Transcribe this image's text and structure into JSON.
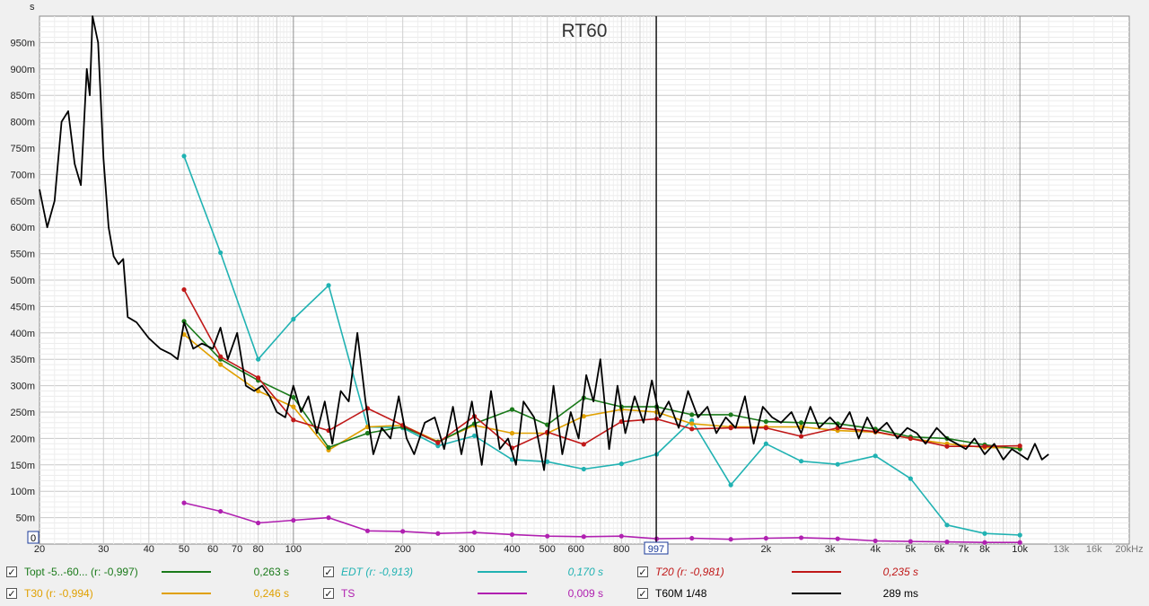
{
  "chart_data": {
    "type": "line",
    "title": "RT60",
    "ylabel": "s",
    "xunit": "Hz",
    "xscale": "log",
    "xlim": [
      20,
      20000
    ],
    "ylim": [
      0,
      1.0
    ],
    "grid": true,
    "y_ticks": [
      {
        "v": 0.05,
        "label": "50m"
      },
      {
        "v": 0.1,
        "label": "100m"
      },
      {
        "v": 0.15,
        "label": "150m"
      },
      {
        "v": 0.2,
        "label": "200m"
      },
      {
        "v": 0.25,
        "label": "250m"
      },
      {
        "v": 0.3,
        "label": "300m"
      },
      {
        "v": 0.35,
        "label": "350m"
      },
      {
        "v": 0.4,
        "label": "400m"
      },
      {
        "v": 0.45,
        "label": "450m"
      },
      {
        "v": 0.5,
        "label": "500m"
      },
      {
        "v": 0.55,
        "label": "550m"
      },
      {
        "v": 0.6,
        "label": "600m"
      },
      {
        "v": 0.65,
        "label": "650m"
      },
      {
        "v": 0.7,
        "label": "700m"
      },
      {
        "v": 0.75,
        "label": "750m"
      },
      {
        "v": 0.8,
        "label": "800m"
      },
      {
        "v": 0.85,
        "label": "850m"
      },
      {
        "v": 0.9,
        "label": "900m"
      },
      {
        "v": 0.95,
        "label": "950m"
      }
    ],
    "y_zero_label": "0",
    "x_ticks": [
      {
        "v": 20,
        "label": "20"
      },
      {
        "v": 30,
        "label": "30"
      },
      {
        "v": 40,
        "label": "40"
      },
      {
        "v": 50,
        "label": "50"
      },
      {
        "v": 60,
        "label": "60"
      },
      {
        "v": 70,
        "label": "70"
      },
      {
        "v": 80,
        "label": "80"
      },
      {
        "v": 100,
        "label": "100"
      },
      {
        "v": 200,
        "label": "200"
      },
      {
        "v": 300,
        "label": "300"
      },
      {
        "v": 400,
        "label": "400"
      },
      {
        "v": 500,
        "label": "500"
      },
      {
        "v": 600,
        "label": "600"
      },
      {
        "v": 800,
        "label": "800"
      },
      {
        "v": 2000,
        "label": "2k"
      },
      {
        "v": 3000,
        "label": "3k"
      },
      {
        "v": 4000,
        "label": "4k"
      },
      {
        "v": 5000,
        "label": "5k"
      },
      {
        "v": 6000,
        "label": "6k"
      },
      {
        "v": 7000,
        "label": "7k"
      },
      {
        "v": 8000,
        "label": "8k"
      },
      {
        "v": 10000,
        "label": "10k"
      },
      {
        "v": 13000,
        "label": "13k",
        "dim": true
      },
      {
        "v": 16000,
        "label": "16k",
        "dim": true
      },
      {
        "v": 20000,
        "label": "20kHz",
        "dim": true
      }
    ],
    "cursor": {
      "x": 997,
      "label": "997"
    },
    "series": [
      {
        "name": "EDT",
        "color": "#20b2b2",
        "markers": true,
        "x": [
          50,
          63,
          80,
          100,
          125,
          160,
          200,
          250,
          315,
          400,
          500,
          630,
          800,
          1000,
          1250,
          1600,
          2000,
          2500,
          3150,
          4000,
          5000,
          6300,
          8000,
          10000
        ],
        "y": [
          0.735,
          0.552,
          0.35,
          0.426,
          0.49,
          0.222,
          0.22,
          0.186,
          0.205,
          0.16,
          0.156,
          0.142,
          0.152,
          0.17,
          0.234,
          0.112,
          0.19,
          0.157,
          0.151,
          0.167,
          0.124,
          0.036,
          0.02,
          0.017
        ]
      },
      {
        "name": "T30",
        "color": "#e0a000",
        "markers": true,
        "x": [
          50,
          63,
          80,
          100,
          125,
          160,
          200,
          250,
          315,
          400,
          500,
          630,
          800,
          1000,
          1250,
          1600,
          2000,
          2500,
          3150,
          4000,
          5000,
          6300,
          8000,
          10000
        ],
        "y": [
          0.397,
          0.34,
          0.29,
          0.26,
          0.178,
          0.222,
          0.225,
          0.194,
          0.225,
          0.21,
          0.21,
          0.242,
          0.255,
          0.25,
          0.228,
          0.222,
          0.222,
          0.222,
          0.215,
          0.212,
          0.2,
          0.19,
          0.183,
          0.182
        ]
      },
      {
        "name": "Topt -5..-60...",
        "color": "#1a7a1a",
        "markers": true,
        "x": [
          50,
          63,
          80,
          100,
          125,
          160,
          200,
          250,
          315,
          400,
          500,
          630,
          800,
          1000,
          1250,
          1600,
          2000,
          2500,
          3150,
          4000,
          5000,
          6300,
          8000,
          10000
        ],
        "y": [
          0.422,
          0.35,
          0.31,
          0.278,
          0.183,
          0.21,
          0.222,
          0.193,
          0.228,
          0.255,
          0.226,
          0.277,
          0.26,
          0.26,
          0.245,
          0.245,
          0.232,
          0.23,
          0.228,
          0.218,
          0.203,
          0.2,
          0.188,
          0.18
        ]
      },
      {
        "name": "T20",
        "color": "#c01818",
        "markers": true,
        "x": [
          50,
          63,
          80,
          100,
          125,
          160,
          200,
          250,
          315,
          400,
          500,
          630,
          800,
          1000,
          1250,
          1600,
          2000,
          2500,
          3150,
          4000,
          5000,
          6300,
          8000,
          10000
        ],
        "y": [
          0.482,
          0.355,
          0.315,
          0.235,
          0.215,
          0.257,
          0.225,
          0.192,
          0.242,
          0.182,
          0.212,
          0.189,
          0.232,
          0.237,
          0.218,
          0.22,
          0.22,
          0.204,
          0.22,
          0.213,
          0.2,
          0.185,
          0.185,
          0.186
        ]
      },
      {
        "name": "TS",
        "color": "#b020b0",
        "markers": true,
        "x": [
          50,
          63,
          80,
          100,
          125,
          160,
          200,
          250,
          315,
          400,
          500,
          630,
          800,
          1000,
          1250,
          1600,
          2000,
          2500,
          3150,
          4000,
          5000,
          6300,
          8000,
          10000
        ],
        "y": [
          0.078,
          0.062,
          0.04,
          0.045,
          0.05,
          0.025,
          0.024,
          0.02,
          0.022,
          0.018,
          0.015,
          0.014,
          0.015,
          0.01,
          0.011,
          0.009,
          0.011,
          0.012,
          0.01,
          0.006,
          0.005,
          0.004,
          0.003,
          0.003
        ]
      },
      {
        "name": "T60M 1/48",
        "color": "#000000",
        "markers": false,
        "x": [
          20,
          21,
          22,
          23,
          24,
          25,
          26,
          27,
          27.5,
          28,
          29,
          30,
          31,
          32,
          33,
          34,
          35,
          37,
          40,
          43,
          46,
          48,
          50,
          53,
          56,
          60,
          63,
          66,
          70,
          74,
          78,
          82,
          86,
          90,
          95,
          100,
          105,
          110,
          116,
          122,
          128,
          135,
          142,
          150,
          158,
          166,
          175,
          185,
          195,
          205,
          215,
          230,
          245,
          260,
          275,
          290,
          310,
          330,
          350,
          370,
          390,
          410,
          430,
          460,
          490,
          520,
          550,
          580,
          610,
          640,
          670,
          700,
          740,
          780,
          820,
          870,
          920,
          970,
          1020,
          1080,
          1150,
          1220,
          1300,
          1380,
          1460,
          1550,
          1650,
          1750,
          1850,
          1960,
          2080,
          2200,
          2350,
          2500,
          2650,
          2800,
          3000,
          3200,
          3400,
          3600,
          3800,
          4000,
          4300,
          4600,
          4900,
          5200,
          5500,
          5900,
          6300,
          6700,
          7100,
          7500,
          8000,
          8500,
          9000,
          9500,
          10000,
          10500,
          11000,
          11500,
          12000
        ],
        "y": [
          0.672,
          0.6,
          0.65,
          0.8,
          0.82,
          0.72,
          0.68,
          0.9,
          0.85,
          1.0,
          0.95,
          0.73,
          0.6,
          0.545,
          0.53,
          0.54,
          0.43,
          0.42,
          0.39,
          0.37,
          0.36,
          0.35,
          0.42,
          0.37,
          0.38,
          0.37,
          0.41,
          0.35,
          0.4,
          0.3,
          0.29,
          0.3,
          0.28,
          0.25,
          0.24,
          0.3,
          0.25,
          0.28,
          0.21,
          0.27,
          0.19,
          0.29,
          0.27,
          0.4,
          0.27,
          0.17,
          0.22,
          0.2,
          0.28,
          0.2,
          0.17,
          0.23,
          0.24,
          0.18,
          0.26,
          0.17,
          0.27,
          0.15,
          0.29,
          0.18,
          0.2,
          0.15,
          0.27,
          0.24,
          0.14,
          0.3,
          0.17,
          0.25,
          0.2,
          0.32,
          0.27,
          0.35,
          0.18,
          0.3,
          0.21,
          0.28,
          0.23,
          0.31,
          0.24,
          0.27,
          0.22,
          0.29,
          0.24,
          0.26,
          0.21,
          0.24,
          0.22,
          0.28,
          0.19,
          0.26,
          0.24,
          0.23,
          0.25,
          0.21,
          0.26,
          0.22,
          0.24,
          0.22,
          0.25,
          0.2,
          0.24,
          0.21,
          0.23,
          0.2,
          0.22,
          0.21,
          0.19,
          0.22,
          0.2,
          0.19,
          0.18,
          0.2,
          0.17,
          0.19,
          0.16,
          0.18,
          0.17,
          0.16,
          0.19,
          0.16,
          0.17
        ]
      }
    ]
  },
  "legend": [
    {
      "checked": "✓",
      "label": "Topt -5..-60... (r: -0,997)",
      "value": "0,263 s",
      "color": "#1a7a1a",
      "italic": false
    },
    {
      "checked": "✓",
      "label": "EDT (r: -0,913)",
      "value": "0,170 s",
      "color": "#20b2b2",
      "italic": true
    },
    {
      "checked": "✓",
      "label": "T20 (r: -0,981)",
      "value": "0,235 s",
      "color": "#c01818",
      "italic": true
    },
    {
      "checked": "✓",
      "label": "T30 (r: -0,994)",
      "value": "0,246 s",
      "color": "#e0a000",
      "italic": false
    },
    {
      "checked": "✓",
      "label": "TS",
      "value": "0,009 s",
      "color": "#b020b0",
      "italic": false
    },
    {
      "checked": "✓",
      "label": "T60M 1/48",
      "value": "289 ms",
      "color": "#000000",
      "italic": false
    }
  ]
}
